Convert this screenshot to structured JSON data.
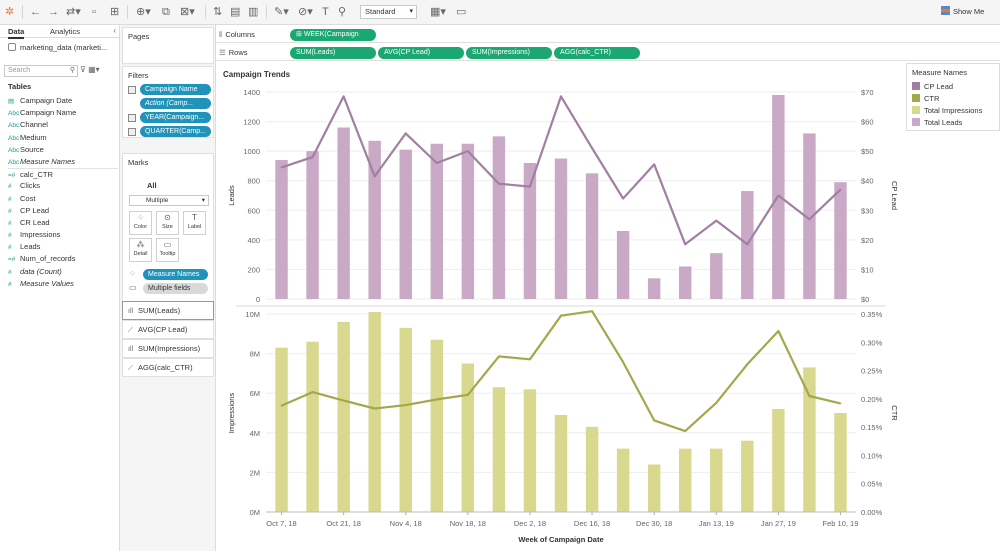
{
  "toolbar": {
    "mode_select": "Standard",
    "show_me_label": "Show Me"
  },
  "data_pane": {
    "tab_data": "Data",
    "tab_analytics": "Analytics",
    "datasource": "marketing_data (marketi...",
    "search_placeholder": "Search",
    "tables_title": "Tables",
    "dimensions": [
      {
        "label": "Campaign Date",
        "icon": "calendar-icon",
        "italic": false
      },
      {
        "label": "Campaign Name",
        "icon": "abc-icon",
        "italic": false
      },
      {
        "label": "Channel",
        "icon": "abc-icon",
        "italic": false
      },
      {
        "label": "Medium",
        "icon": "abc-icon",
        "italic": false
      },
      {
        "label": "Source",
        "icon": "abc-icon",
        "italic": false
      },
      {
        "label": "Measure Names",
        "icon": "abc-icon",
        "italic": true
      }
    ],
    "measures": [
      {
        "label": "calc_CTR",
        "icon": "calc-measure-icon",
        "italic": false
      },
      {
        "label": "Clicks",
        "icon": "measure-icon",
        "italic": false
      },
      {
        "label": "Cost",
        "icon": "measure-icon",
        "italic": false
      },
      {
        "label": "CP Lead",
        "icon": "measure-icon",
        "italic": false
      },
      {
        "label": "CR Lead",
        "icon": "measure-icon",
        "italic": false
      },
      {
        "label": "Impressions",
        "icon": "measure-icon",
        "italic": false
      },
      {
        "label": "Leads",
        "icon": "measure-icon",
        "italic": false
      },
      {
        "label": "Num_of_records",
        "icon": "calc-measure-icon",
        "italic": false
      },
      {
        "label": "data (Count)",
        "icon": "measure-icon",
        "italic": true
      },
      {
        "label": "Measure Values",
        "icon": "measure-icon",
        "italic": true
      }
    ]
  },
  "pages_title": "Pages",
  "filters": {
    "title": "Filters",
    "items": [
      "Campaign Name",
      "Action (Camp...",
      "YEAR(Campaign...",
      "QUARTER(Camp..."
    ]
  },
  "marks": {
    "title": "Marks",
    "all_label": "All",
    "mark_type": "Multiple",
    "buttons": [
      "Color",
      "Size",
      "Label",
      "Detail",
      "Tooltip"
    ],
    "color_pill": "Measure Names",
    "tooltip_pill": "Multiple fields",
    "cards": [
      "SUM(Leads)",
      "AVG(CP Lead)",
      "SUM(Impressions)",
      "AGG(calc_CTR)"
    ]
  },
  "shelves": {
    "columns_label": "Columns",
    "rows_label": "Rows",
    "columns_pills": [
      "WEEK(Campaign"
    ],
    "rows_pills": [
      "SUM(Leads)",
      "AVG(CP Lead)",
      "SUM(Impressions)",
      "AGG(calc_CTR)"
    ]
  },
  "legend": {
    "title": "Measure Names",
    "items": [
      {
        "label": "CP Lead",
        "color": "#a07fa3"
      },
      {
        "label": "CTR",
        "color": "#a3a84b"
      },
      {
        "label": "Total Impressions",
        "color": "#d9d88f"
      },
      {
        "label": "Total Leads",
        "color": "#c9a9c5"
      }
    ]
  },
  "chart_data": {
    "type": "bar",
    "title": "Campaign Trends",
    "xlabel": "Week of Campaign Date",
    "x_ticks": [
      "Oct 7, 18",
      "Oct 21, 18",
      "Nov 4, 18",
      "Nov 18, 18",
      "Dec 2, 18",
      "Dec 16, 18",
      "Dec 30, 18",
      "Jan 13, 19",
      "Jan 27, 19",
      "Feb 10, 19"
    ],
    "weeks": [
      "Oct 7, 18",
      "Oct 14, 18",
      "Oct 21, 18",
      "Oct 28, 18",
      "Nov 4, 18",
      "Nov 11, 18",
      "Nov 18, 18",
      "Nov 25, 18",
      "Dec 2, 18",
      "Dec 9, 18",
      "Dec 16, 18",
      "Dec 23, 18",
      "Dec 30, 18",
      "Jan 6, 19",
      "Jan 13, 19",
      "Jan 20, 19",
      "Jan 27, 19",
      "Feb 3, 19",
      "Feb 10, 19"
    ],
    "panels": [
      {
        "left_axis": {
          "label": "Leads",
          "ticks": [
            0,
            200,
            400,
            600,
            800,
            1000,
            1200,
            1400
          ],
          "ylim": [
            0,
            1400
          ]
        },
        "right_axis": {
          "label": "CP Lead",
          "ticks": [
            "$0",
            "$10",
            "$20",
            "$30",
            "$40",
            "$50",
            "$60",
            "$70"
          ],
          "ylim": [
            0,
            70
          ]
        },
        "bars": {
          "name": "Total Leads",
          "color": "#c9a9c5",
          "values": [
            940,
            1000,
            1160,
            1070,
            1010,
            1050,
            1050,
            1100,
            920,
            950,
            850,
            460,
            140,
            220,
            310,
            730,
            1380,
            1120,
            790
          ]
        },
        "line": {
          "name": "CP Lead",
          "color": "#a07fa3",
          "values": [
            44.5,
            48,
            68.5,
            41.5,
            56,
            46,
            50,
            39,
            38,
            68.5,
            51,
            34,
            45.5,
            18.5,
            26.5,
            18.5,
            35,
            27,
            37
          ]
        }
      },
      {
        "left_axis": {
          "label": "Impressions",
          "ticks": [
            "0M",
            "2M",
            "4M",
            "6M",
            "8M",
            "10M"
          ],
          "ylim": [
            0,
            10000000
          ]
        },
        "right_axis": {
          "label": "CTR",
          "ticks": [
            "0.00%",
            "0.05%",
            "0.10%",
            "0.15%",
            "0.20%",
            "0.25%",
            "0.30%",
            "0.35%"
          ],
          "ylim": [
            0,
            0.35
          ]
        },
        "bars": {
          "name": "Total Impressions",
          "color": "#d9d88f",
          "values": [
            8300000,
            8600000,
            9600000,
            10100000,
            9300000,
            8700000,
            7500000,
            6300000,
            6200000,
            4900000,
            4300000,
            3200000,
            2400000,
            3200000,
            3200000,
            3600000,
            5200000,
            7300000,
            5000000
          ]
        },
        "line": {
          "name": "CTR",
          "color": "#a3a84b",
          "values": [
            0.188,
            0.212,
            0.197,
            0.183,
            0.189,
            0.199,
            0.207,
            0.275,
            0.27,
            0.347,
            0.355,
            0.265,
            0.162,
            0.143,
            0.193,
            0.261,
            0.32,
            0.205,
            0.192
          ]
        }
      }
    ]
  }
}
